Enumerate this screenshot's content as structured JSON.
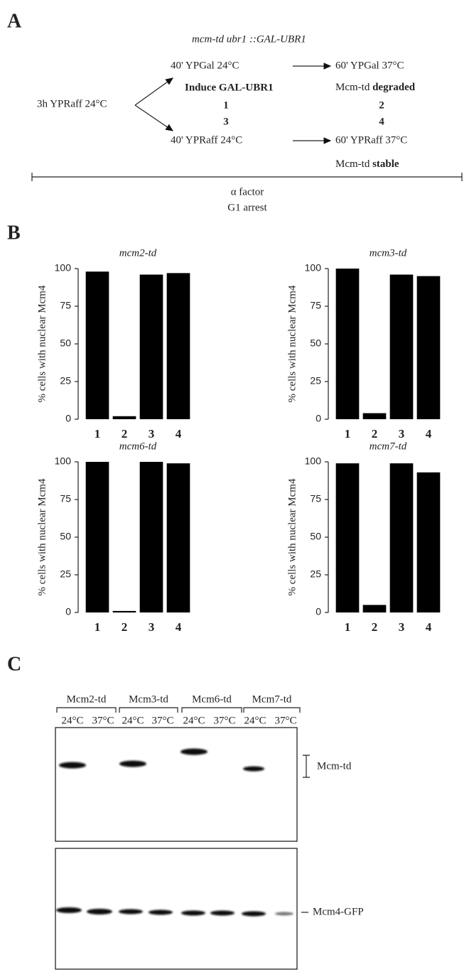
{
  "panel_labels": [
    "A",
    "B",
    "C"
  ],
  "panel_a": {
    "strain": "mcm-td ubr1 ::GAL-UBR1",
    "start": "3h YPRaff 24°C",
    "top_step1": "40' YPGal 24°C",
    "top_step2": "60' YPGal 37°C",
    "top_note": "Induce GAL-UBR1",
    "top_result_prefix": "Mcm-td",
    "top_result": "degraded",
    "bottom_step1": "40' YPRaff 24°C",
    "bottom_step2": "60' YPRaff 37°C",
    "bottom_result_prefix": "Mcm-td",
    "bottom_result": "stable",
    "conditions": [
      "1",
      "2",
      "3",
      "4"
    ],
    "arrest_agent": "α factor",
    "arrest": "G1 arrest"
  },
  "chart_data": [
    {
      "type": "bar",
      "title": "mcm2-td",
      "y_label": "% cells with nuclear Mcm4",
      "categories": [
        "1",
        "2",
        "3",
        "4"
      ],
      "values": [
        98,
        2,
        96,
        97
      ],
      "color": "#000000",
      "ylim": [
        0,
        100
      ],
      "yticks": [
        0,
        25,
        50,
        75,
        100
      ]
    },
    {
      "type": "bar",
      "title": "mcm3-td",
      "y_label": "% cells with nuclear Mcm4",
      "categories": [
        "1",
        "2",
        "3",
        "4"
      ],
      "values": [
        100,
        4,
        96,
        95
      ],
      "color": "#000000",
      "ylim": [
        0,
        100
      ],
      "yticks": [
        0,
        25,
        50,
        75,
        100
      ]
    },
    {
      "type": "bar",
      "title": "mcm6-td",
      "y_label": "% cells with nuclear Mcm4",
      "categories": [
        "1",
        "2",
        "3",
        "4"
      ],
      "values": [
        100,
        1,
        100,
        99
      ],
      "color": "#000000",
      "ylim": [
        0,
        100
      ],
      "yticks": [
        0,
        25,
        50,
        75,
        100
      ]
    },
    {
      "type": "bar",
      "title": "mcm7-td",
      "y_label": "% cells with nuclear Mcm4",
      "categories": [
        "1",
        "2",
        "3",
        "4"
      ],
      "values": [
        99,
        5,
        99,
        93
      ],
      "color": "#000000",
      "ylim": [
        0,
        100
      ],
      "yticks": [
        0,
        25,
        50,
        75,
        100
      ]
    }
  ],
  "panel_c": {
    "groups": [
      "Mcm2-td",
      "Mcm3-td",
      "Mcm6-td",
      "Mcm7-td"
    ],
    "temperatures": [
      "24°C",
      "37°C",
      "24°C",
      "37°C",
      "24°C",
      "37°C",
      "24°C",
      "37°C"
    ],
    "bands": [
      "Mcm-td",
      "Mcm4-GFP"
    ]
  }
}
